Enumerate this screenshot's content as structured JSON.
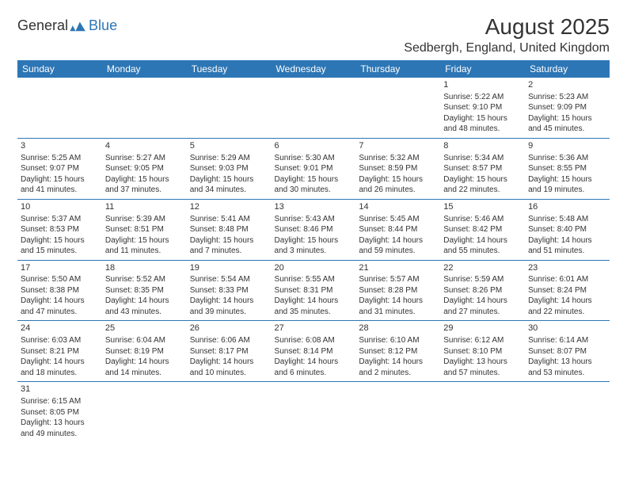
{
  "logo": {
    "word1": "General",
    "word2": "Blue"
  },
  "title": "August 2025",
  "location": "Sedbergh, England, United Kingdom",
  "colors": {
    "accent": "#2d76b5",
    "text": "#333333",
    "bg": "#ffffff"
  },
  "day_headers": [
    "Sunday",
    "Monday",
    "Tuesday",
    "Wednesday",
    "Thursday",
    "Friday",
    "Saturday"
  ],
  "weeks": [
    [
      null,
      null,
      null,
      null,
      null,
      {
        "n": "1",
        "sunrise": "5:22 AM",
        "sunset": "9:10 PM",
        "dl1": "15 hours",
        "dl2": "and 48 minutes."
      },
      {
        "n": "2",
        "sunrise": "5:23 AM",
        "sunset": "9:09 PM",
        "dl1": "15 hours",
        "dl2": "and 45 minutes."
      }
    ],
    [
      {
        "n": "3",
        "sunrise": "5:25 AM",
        "sunset": "9:07 PM",
        "dl1": "15 hours",
        "dl2": "and 41 minutes."
      },
      {
        "n": "4",
        "sunrise": "5:27 AM",
        "sunset": "9:05 PM",
        "dl1": "15 hours",
        "dl2": "and 37 minutes."
      },
      {
        "n": "5",
        "sunrise": "5:29 AM",
        "sunset": "9:03 PM",
        "dl1": "15 hours",
        "dl2": "and 34 minutes."
      },
      {
        "n": "6",
        "sunrise": "5:30 AM",
        "sunset": "9:01 PM",
        "dl1": "15 hours",
        "dl2": "and 30 minutes."
      },
      {
        "n": "7",
        "sunrise": "5:32 AM",
        "sunset": "8:59 PM",
        "dl1": "15 hours",
        "dl2": "and 26 minutes."
      },
      {
        "n": "8",
        "sunrise": "5:34 AM",
        "sunset": "8:57 PM",
        "dl1": "15 hours",
        "dl2": "and 22 minutes."
      },
      {
        "n": "9",
        "sunrise": "5:36 AM",
        "sunset": "8:55 PM",
        "dl1": "15 hours",
        "dl2": "and 19 minutes."
      }
    ],
    [
      {
        "n": "10",
        "sunrise": "5:37 AM",
        "sunset": "8:53 PM",
        "dl1": "15 hours",
        "dl2": "and 15 minutes."
      },
      {
        "n": "11",
        "sunrise": "5:39 AM",
        "sunset": "8:51 PM",
        "dl1": "15 hours",
        "dl2": "and 11 minutes."
      },
      {
        "n": "12",
        "sunrise": "5:41 AM",
        "sunset": "8:48 PM",
        "dl1": "15 hours",
        "dl2": "and 7 minutes."
      },
      {
        "n": "13",
        "sunrise": "5:43 AM",
        "sunset": "8:46 PM",
        "dl1": "15 hours",
        "dl2": "and 3 minutes."
      },
      {
        "n": "14",
        "sunrise": "5:45 AM",
        "sunset": "8:44 PM",
        "dl1": "14 hours",
        "dl2": "and 59 minutes."
      },
      {
        "n": "15",
        "sunrise": "5:46 AM",
        "sunset": "8:42 PM",
        "dl1": "14 hours",
        "dl2": "and 55 minutes."
      },
      {
        "n": "16",
        "sunrise": "5:48 AM",
        "sunset": "8:40 PM",
        "dl1": "14 hours",
        "dl2": "and 51 minutes."
      }
    ],
    [
      {
        "n": "17",
        "sunrise": "5:50 AM",
        "sunset": "8:38 PM",
        "dl1": "14 hours",
        "dl2": "and 47 minutes."
      },
      {
        "n": "18",
        "sunrise": "5:52 AM",
        "sunset": "8:35 PM",
        "dl1": "14 hours",
        "dl2": "and 43 minutes."
      },
      {
        "n": "19",
        "sunrise": "5:54 AM",
        "sunset": "8:33 PM",
        "dl1": "14 hours",
        "dl2": "and 39 minutes."
      },
      {
        "n": "20",
        "sunrise": "5:55 AM",
        "sunset": "8:31 PM",
        "dl1": "14 hours",
        "dl2": "and 35 minutes."
      },
      {
        "n": "21",
        "sunrise": "5:57 AM",
        "sunset": "8:28 PM",
        "dl1": "14 hours",
        "dl2": "and 31 minutes."
      },
      {
        "n": "22",
        "sunrise": "5:59 AM",
        "sunset": "8:26 PM",
        "dl1": "14 hours",
        "dl2": "and 27 minutes."
      },
      {
        "n": "23",
        "sunrise": "6:01 AM",
        "sunset": "8:24 PM",
        "dl1": "14 hours",
        "dl2": "and 22 minutes."
      }
    ],
    [
      {
        "n": "24",
        "sunrise": "6:03 AM",
        "sunset": "8:21 PM",
        "dl1": "14 hours",
        "dl2": "and 18 minutes."
      },
      {
        "n": "25",
        "sunrise": "6:04 AM",
        "sunset": "8:19 PM",
        "dl1": "14 hours",
        "dl2": "and 14 minutes."
      },
      {
        "n": "26",
        "sunrise": "6:06 AM",
        "sunset": "8:17 PM",
        "dl1": "14 hours",
        "dl2": "and 10 minutes."
      },
      {
        "n": "27",
        "sunrise": "6:08 AM",
        "sunset": "8:14 PM",
        "dl1": "14 hours",
        "dl2": "and 6 minutes."
      },
      {
        "n": "28",
        "sunrise": "6:10 AM",
        "sunset": "8:12 PM",
        "dl1": "14 hours",
        "dl2": "and 2 minutes."
      },
      {
        "n": "29",
        "sunrise": "6:12 AM",
        "sunset": "8:10 PM",
        "dl1": "13 hours",
        "dl2": "and 57 minutes."
      },
      {
        "n": "30",
        "sunrise": "6:14 AM",
        "sunset": "8:07 PM",
        "dl1": "13 hours",
        "dl2": "and 53 minutes."
      }
    ],
    [
      {
        "n": "31",
        "sunrise": "6:15 AM",
        "sunset": "8:05 PM",
        "dl1": "13 hours",
        "dl2": "and 49 minutes."
      },
      null,
      null,
      null,
      null,
      null,
      null
    ]
  ],
  "labels": {
    "sunrise": "Sunrise: ",
    "sunset": "Sunset: ",
    "daylight": "Daylight: "
  }
}
